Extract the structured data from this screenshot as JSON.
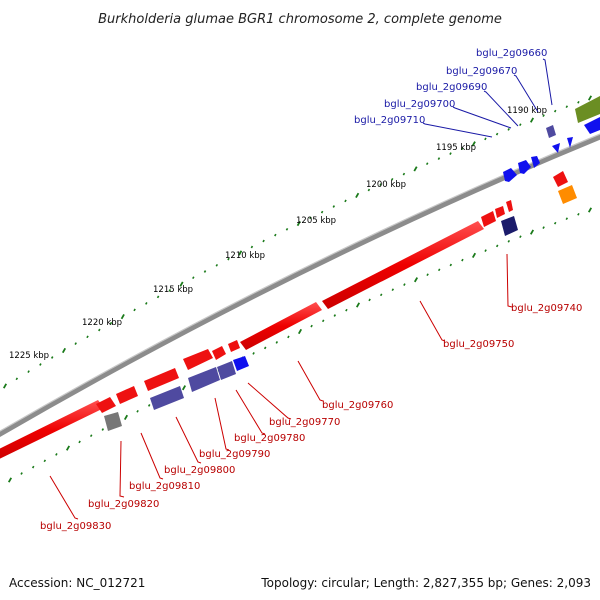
{
  "title": "Burkholderia glumae BGR1 chromosome 2, complete genome",
  "accession": "Accession: NC_012721",
  "topology": "Topology: circular; Length: 2,827,355 bp; Genes: 2,093",
  "ruler": [
    "1190 kbp",
    "1195 kbp",
    "1200 kbp",
    "1205 kbp",
    "1210 kbp",
    "1215 kbp",
    "1220 kbp",
    "1225 kbp"
  ],
  "genes_top": [
    "bglu_2g09660",
    "bglu_2g09670",
    "bglu_2g09690",
    "bglu_2g09700",
    "bglu_2g09710"
  ],
  "genes_bottom": [
    "bglu_2g09740",
    "bglu_2g09750",
    "bglu_2g09760",
    "bglu_2g09770",
    "bglu_2g09780",
    "bglu_2g09790",
    "bglu_2g09800",
    "bglu_2g09810",
    "bglu_2g09820",
    "bglu_2g09830"
  ],
  "colors": {
    "backbone": "#8c8c8c",
    "gene_red": "#ee1111",
    "gene_purple": "#4f4aa0",
    "gene_blue": "#1010ee",
    "gene_olive": "#6b8e23",
    "gene_orange": "#ff8c00",
    "gene_navy": "#1b1b6b",
    "gene_gray": "#777777",
    "ticks": "#1a7a1a",
    "label_blue": "#1a1aa6",
    "label_red": "#b80000"
  }
}
